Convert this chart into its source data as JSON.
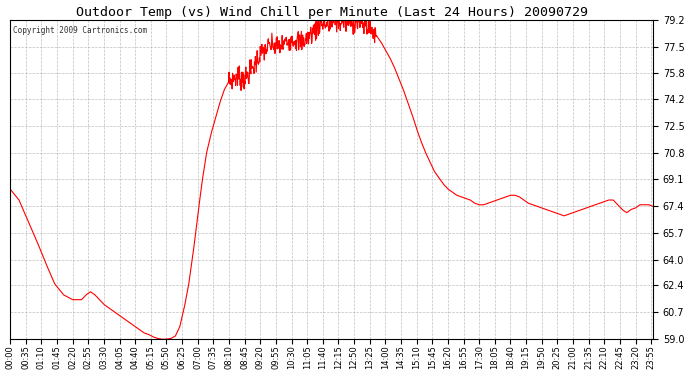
{
  "title": "Outdoor Temp (vs) Wind Chill per Minute (Last 24 Hours) 20090729",
  "copyright": "Copyright 2009 Cartronics.com",
  "line_color": "#ff0000",
  "bg_color": "#ffffff",
  "grid_color": "#b0b0b0",
  "ymin": 59.0,
  "ymax": 79.2,
  "yticks": [
    59.0,
    60.7,
    62.4,
    64.0,
    65.7,
    67.4,
    69.1,
    70.8,
    72.5,
    74.2,
    75.8,
    77.5,
    79.2
  ],
  "xtick_labels": [
    "00:00",
    "00:35",
    "01:10",
    "01:45",
    "02:20",
    "02:55",
    "03:30",
    "04:05",
    "04:40",
    "05:15",
    "05:50",
    "06:25",
    "07:00",
    "07:35",
    "08:10",
    "08:45",
    "09:20",
    "09:55",
    "10:30",
    "11:05",
    "11:40",
    "12:15",
    "12:50",
    "13:25",
    "14:00",
    "14:35",
    "15:10",
    "15:45",
    "16:20",
    "16:55",
    "17:30",
    "18:05",
    "18:40",
    "19:15",
    "19:50",
    "20:25",
    "21:00",
    "21:35",
    "22:10",
    "22:45",
    "23:20",
    "23:55"
  ],
  "control_points": [
    [
      0,
      68.5
    ],
    [
      20,
      67.8
    ],
    [
      40,
      66.5
    ],
    [
      60,
      65.2
    ],
    [
      80,
      63.8
    ],
    [
      100,
      62.5
    ],
    [
      120,
      61.8
    ],
    [
      140,
      61.5
    ],
    [
      160,
      61.5
    ],
    [
      170,
      61.8
    ],
    [
      180,
      62.0
    ],
    [
      190,
      61.8
    ],
    [
      200,
      61.5
    ],
    [
      210,
      61.2
    ],
    [
      220,
      61.0
    ],
    [
      230,
      60.8
    ],
    [
      240,
      60.6
    ],
    [
      250,
      60.4
    ],
    [
      260,
      60.2
    ],
    [
      270,
      60.0
    ],
    [
      280,
      59.8
    ],
    [
      290,
      59.6
    ],
    [
      300,
      59.4
    ],
    [
      310,
      59.3
    ],
    [
      320,
      59.15
    ],
    [
      330,
      59.05
    ],
    [
      340,
      59.0
    ],
    [
      350,
      59.0
    ],
    [
      360,
      59.05
    ],
    [
      370,
      59.2
    ],
    [
      380,
      59.8
    ],
    [
      390,
      61.0
    ],
    [
      400,
      62.5
    ],
    [
      410,
      64.5
    ],
    [
      420,
      66.8
    ],
    [
      430,
      69.0
    ],
    [
      440,
      70.8
    ],
    [
      450,
      72.0
    ],
    [
      460,
      73.0
    ],
    [
      470,
      74.0
    ],
    [
      480,
      74.8
    ],
    [
      490,
      75.3
    ],
    [
      500,
      75.5
    ],
    [
      510,
      75.6
    ],
    [
      520,
      75.5
    ],
    [
      530,
      75.6
    ],
    [
      540,
      76.0
    ],
    [
      550,
      76.5
    ],
    [
      560,
      77.0
    ],
    [
      570,
      77.3
    ],
    [
      580,
      77.5
    ],
    [
      590,
      77.6
    ],
    [
      600,
      77.5
    ],
    [
      610,
      77.6
    ],
    [
      620,
      77.8
    ],
    [
      630,
      78.0
    ],
    [
      640,
      77.9
    ],
    [
      650,
      77.8
    ],
    [
      660,
      77.9
    ],
    [
      670,
      78.2
    ],
    [
      680,
      78.5
    ],
    [
      690,
      78.8
    ],
    [
      700,
      79.0
    ],
    [
      710,
      78.8
    ],
    [
      720,
      78.9
    ],
    [
      730,
      79.1
    ],
    [
      740,
      79.0
    ],
    [
      750,
      79.1
    ],
    [
      760,
      79.0
    ],
    [
      770,
      79.1
    ],
    [
      780,
      79.1
    ],
    [
      790,
      78.9
    ],
    [
      800,
      78.8
    ],
    [
      810,
      78.5
    ],
    [
      820,
      78.2
    ],
    [
      830,
      77.8
    ],
    [
      840,
      77.3
    ],
    [
      850,
      76.8
    ],
    [
      860,
      76.2
    ],
    [
      870,
      75.5
    ],
    [
      880,
      74.8
    ],
    [
      890,
      74.0
    ],
    [
      900,
      73.2
    ],
    [
      910,
      72.3
    ],
    [
      920,
      71.5
    ],
    [
      930,
      70.8
    ],
    [
      940,
      70.2
    ],
    [
      950,
      69.6
    ],
    [
      960,
      69.2
    ],
    [
      970,
      68.8
    ],
    [
      980,
      68.5
    ],
    [
      990,
      68.3
    ],
    [
      1000,
      68.1
    ],
    [
      1010,
      68.0
    ],
    [
      1020,
      67.9
    ],
    [
      1030,
      67.8
    ],
    [
      1040,
      67.6
    ],
    [
      1050,
      67.5
    ],
    [
      1060,
      67.5
    ],
    [
      1070,
      67.6
    ],
    [
      1080,
      67.7
    ],
    [
      1090,
      67.8
    ],
    [
      1100,
      67.9
    ],
    [
      1110,
      68.0
    ],
    [
      1120,
      68.1
    ],
    [
      1130,
      68.1
    ],
    [
      1140,
      68.0
    ],
    [
      1150,
      67.8
    ],
    [
      1160,
      67.6
    ],
    [
      1170,
      67.5
    ],
    [
      1180,
      67.4
    ],
    [
      1190,
      67.3
    ],
    [
      1200,
      67.2
    ],
    [
      1210,
      67.1
    ],
    [
      1220,
      67.0
    ],
    [
      1230,
      66.9
    ],
    [
      1240,
      66.8
    ],
    [
      1250,
      66.9
    ],
    [
      1260,
      67.0
    ],
    [
      1270,
      67.1
    ],
    [
      1280,
      67.2
    ],
    [
      1290,
      67.3
    ],
    [
      1300,
      67.4
    ],
    [
      1310,
      67.5
    ],
    [
      1320,
      67.6
    ],
    [
      1330,
      67.7
    ],
    [
      1340,
      67.8
    ],
    [
      1350,
      67.8
    ],
    [
      1360,
      67.5
    ],
    [
      1370,
      67.2
    ],
    [
      1380,
      67.0
    ],
    [
      1390,
      67.2
    ],
    [
      1400,
      67.3
    ],
    [
      1410,
      67.5
    ],
    [
      1420,
      67.5
    ],
    [
      1430,
      67.5
    ],
    [
      1439,
      67.4
    ]
  ]
}
